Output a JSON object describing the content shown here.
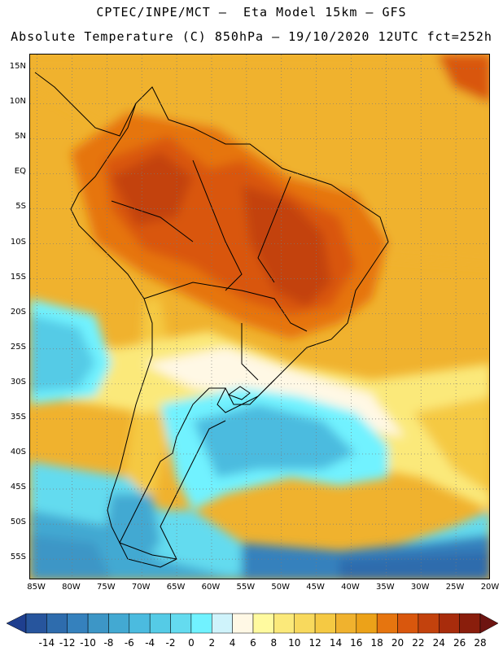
{
  "header": {
    "title_line1": "CPTEC/INPE/MCT –  Eta Model 15km – GFS",
    "title_line2": "Absolute Temperature (C) 850hPa – 19/10/2020 12UTC fct=252h"
  },
  "map": {
    "lat_range": [
      -58,
      17
    ],
    "lon_range": [
      -86,
      -20
    ],
    "lat_labels": [
      {
        "lat": 15,
        "text": "15N"
      },
      {
        "lat": 10,
        "text": "10N"
      },
      {
        "lat": 5,
        "text": "5N"
      },
      {
        "lat": 0,
        "text": "EQ"
      },
      {
        "lat": -5,
        "text": "5S"
      },
      {
        "lat": -10,
        "text": "10S"
      },
      {
        "lat": -15,
        "text": "15S"
      },
      {
        "lat": -20,
        "text": "20S"
      },
      {
        "lat": -25,
        "text": "25S"
      },
      {
        "lat": -30,
        "text": "30S"
      },
      {
        "lat": -35,
        "text": "35S"
      },
      {
        "lat": -40,
        "text": "40S"
      },
      {
        "lat": -45,
        "text": "45S"
      },
      {
        "lat": -50,
        "text": "50S"
      },
      {
        "lat": -55,
        "text": "55S"
      }
    ],
    "lon_labels": [
      {
        "lon": -85,
        "text": "85W"
      },
      {
        "lon": -80,
        "text": "80W"
      },
      {
        "lon": -75,
        "text": "75W"
      },
      {
        "lon": -70,
        "text": "70W"
      },
      {
        "lon": -65,
        "text": "65W"
      },
      {
        "lon": -60,
        "text": "60W"
      },
      {
        "lon": -55,
        "text": "55W"
      },
      {
        "lon": -50,
        "text": "50W"
      },
      {
        "lon": -45,
        "text": "45W"
      },
      {
        "lon": -40,
        "text": "40W"
      },
      {
        "lon": -35,
        "text": "35W"
      },
      {
        "lon": -30,
        "text": "30W"
      },
      {
        "lon": -25,
        "text": "25W"
      },
      {
        "lon": -20,
        "text": "20W"
      }
    ],
    "gridlines": "dotted"
  },
  "colorbar": {
    "levels": [
      -14,
      -12,
      -10,
      -8,
      -6,
      -4,
      -2,
      0,
      2,
      4,
      6,
      8,
      10,
      12,
      14,
      16,
      18,
      20,
      22,
      24,
      26,
      28
    ],
    "colors": [
      "#1f3f8f",
      "#27559d",
      "#2e6cad",
      "#3581bd",
      "#3d96c6",
      "#43a9d2",
      "#4bbbdf",
      "#55cbe6",
      "#64dbef",
      "#71f2ff",
      "#cff3fb",
      "#fff8e5",
      "#fffa9f",
      "#fbe97a",
      "#f8d95d",
      "#f5c943",
      "#f0b22e",
      "#eca219",
      "#e6750f",
      "#d9570d",
      "#c3420d",
      "#a82c0c",
      "#8a1e0c",
      "#6d1411"
    ],
    "labels": [
      "-14",
      "-12",
      "-10",
      "-8",
      "-6",
      "-4",
      "-2",
      "0",
      "2",
      "4",
      "6",
      "8",
      "10",
      "12",
      "14",
      "16",
      "18",
      "20",
      "22",
      "24",
      "26",
      "28"
    ]
  }
}
